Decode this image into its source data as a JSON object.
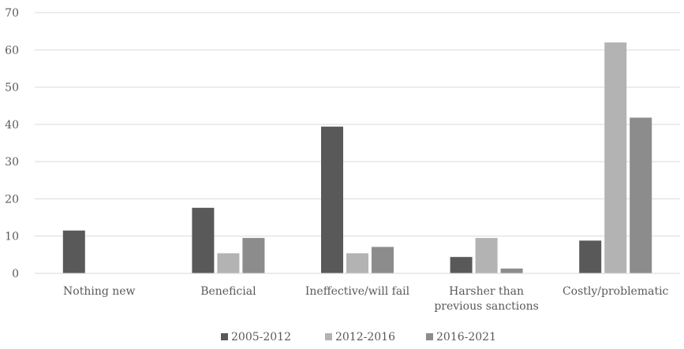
{
  "chart_data": {
    "type": "bar",
    "title": "",
    "xlabel": "",
    "ylabel": "",
    "ylim": [
      0,
      70
    ],
    "yticks": [
      0,
      10,
      20,
      30,
      40,
      50,
      60,
      70
    ],
    "grid": true,
    "legend_position": "bottom",
    "categories": [
      [
        "Nothing new"
      ],
      [
        "Beneficial"
      ],
      [
        "Ineffective/will fail"
      ],
      [
        "Harsher than",
        "previous sanctions"
      ],
      [
        "Costly/problematic"
      ]
    ],
    "series": [
      {
        "name": "2005-2012",
        "color": "#595959",
        "values": [
          11.5,
          17.6,
          39.4,
          4.4,
          8.8
        ]
      },
      {
        "name": "2012-2016",
        "color": "#b3b3b3",
        "values": [
          0,
          5.4,
          5.4,
          9.5,
          62.0
        ]
      },
      {
        "name": "2016-2021",
        "color": "#8c8c8c",
        "values": [
          0,
          9.5,
          7.1,
          1.3,
          41.8
        ]
      }
    ]
  }
}
